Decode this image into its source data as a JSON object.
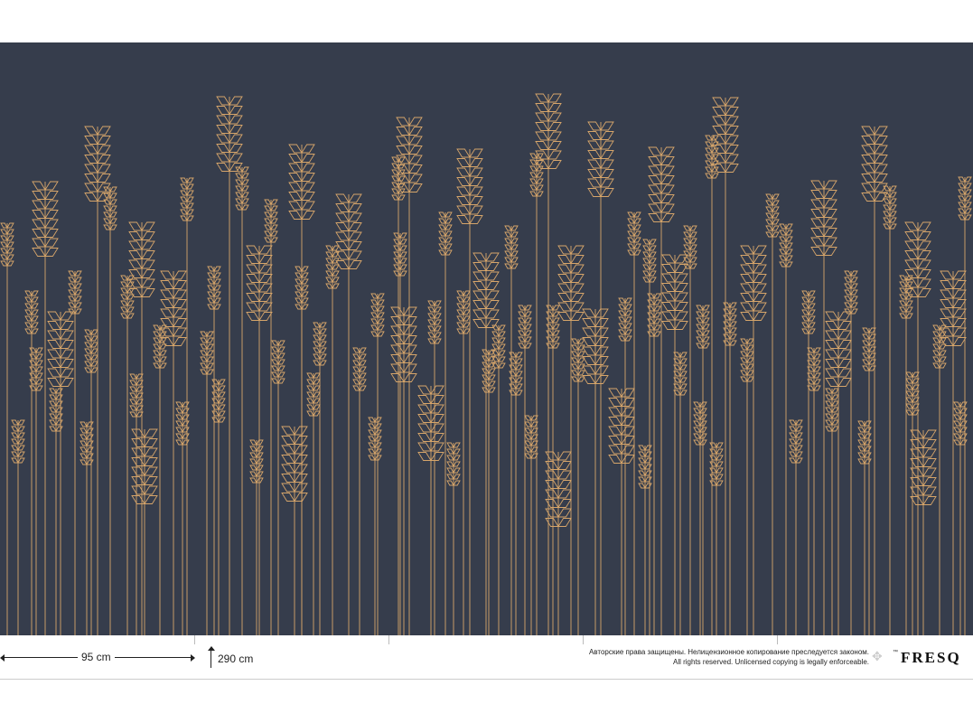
{
  "colors": {
    "background": "#363d4c",
    "wheat": "#d6a56a"
  },
  "dimensions": {
    "width_label": "95 cm",
    "height_label": "290 cm"
  },
  "copyright": {
    "ru": "Авторские права защищены. Нелицензионное копирование преследуется законом.",
    "en": "All rights reserved. Unlicensed copying is legally enforceable."
  },
  "brand": {
    "tm": "™",
    "name": "FRESQ",
    "emblem_icon": "double-eagle-emblem"
  }
}
